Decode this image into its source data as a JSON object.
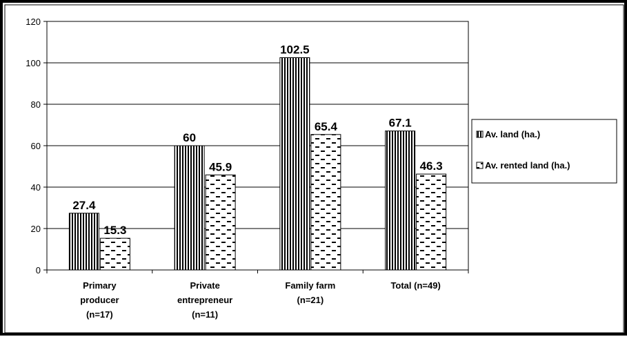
{
  "chart_data": {
    "type": "bar",
    "categories": [
      [
        "Primary",
        "producer",
        "(n=17)"
      ],
      [
        "Private",
        "entrepreneur",
        "(n=11)"
      ],
      [
        "Family farm",
        "(n=21)"
      ],
      [
        "Total (n=49)"
      ]
    ],
    "series": [
      {
        "name": "Av. land (ha.)",
        "values": [
          27.4,
          60,
          102.5,
          67.1
        ],
        "labels": [
          "27.4",
          "60",
          "102.5",
          "67.1"
        ],
        "pattern": "vertical-stripes"
      },
      {
        "name": "Av. rented land (ha.)",
        "values": [
          15.3,
          45.9,
          65.4,
          46.3
        ],
        "labels": [
          "15.3",
          "45.9",
          "65.4",
          "46.3"
        ],
        "pattern": "dashes"
      }
    ],
    "ylim": [
      0,
      120
    ],
    "yticks": [
      "0",
      "20",
      "40",
      "60",
      "80",
      "100",
      "120"
    ],
    "grid": true,
    "legend_position": "right"
  }
}
